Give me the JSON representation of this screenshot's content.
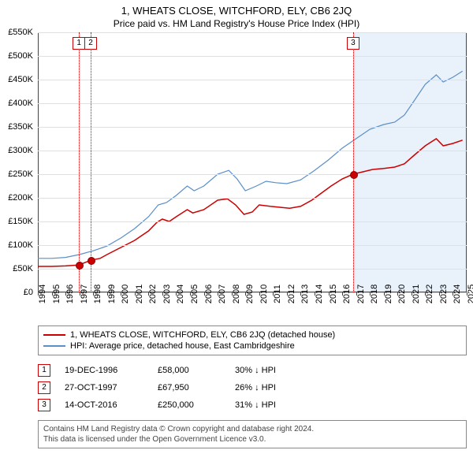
{
  "title": "1, WHEATS CLOSE, WITCHFORD, ELY, CB6 2JQ",
  "subtitle": "Price paid vs. HM Land Registry's House Price Index (HPI)",
  "chart": {
    "type": "line",
    "x_years": [
      1994,
      1995,
      1996,
      1997,
      1998,
      1999,
      2000,
      2001,
      2002,
      2003,
      2004,
      2005,
      2006,
      2007,
      2008,
      2009,
      2010,
      2011,
      2012,
      2013,
      2014,
      2015,
      2016,
      2017,
      2018,
      2019,
      2020,
      2021,
      2022,
      2023,
      2024,
      2025
    ],
    "ylim": [
      0,
      550000
    ],
    "ytick_step": 50000,
    "ytick_labels": [
      "£0",
      "£50K",
      "£100K",
      "£150K",
      "£200K",
      "£250K",
      "£300K",
      "£350K",
      "£400K",
      "£450K",
      "£500K",
      "£550K"
    ],
    "grid_color": "#e0e0e0",
    "background_color": "#ffffff",
    "shade_from_year": 2016.8,
    "shade_color": "#d7e6f5",
    "series": {
      "price_paid": {
        "label": "1, WHEATS CLOSE, WITCHFORD, ELY, CB6 2JQ (detached house)",
        "color": "#cc0000",
        "width": 1.5,
        "points": [
          [
            1994.0,
            55000
          ],
          [
            1995.0,
            55000
          ],
          [
            1996.0,
            56000
          ],
          [
            1996.97,
            58000
          ],
          [
            1997.82,
            67950
          ],
          [
            1998.5,
            72000
          ],
          [
            1999.0,
            80000
          ],
          [
            2000.0,
            95000
          ],
          [
            2001.0,
            110000
          ],
          [
            2002.0,
            130000
          ],
          [
            2002.6,
            148000
          ],
          [
            2003.0,
            155000
          ],
          [
            2003.5,
            150000
          ],
          [
            2004.0,
            160000
          ],
          [
            2004.8,
            175000
          ],
          [
            2005.2,
            168000
          ],
          [
            2006.0,
            175000
          ],
          [
            2007.0,
            195000
          ],
          [
            2007.7,
            198000
          ],
          [
            2008.3,
            185000
          ],
          [
            2008.9,
            165000
          ],
          [
            2009.5,
            170000
          ],
          [
            2010.0,
            185000
          ],
          [
            2010.8,
            182000
          ],
          [
            2011.5,
            180000
          ],
          [
            2012.2,
            178000
          ],
          [
            2013.0,
            182000
          ],
          [
            2013.8,
            195000
          ],
          [
            2014.5,
            210000
          ],
          [
            2015.2,
            225000
          ],
          [
            2016.0,
            240000
          ],
          [
            2016.79,
            250000
          ],
          [
            2017.5,
            255000
          ],
          [
            2018.2,
            260000
          ],
          [
            2019.0,
            262000
          ],
          [
            2019.8,
            265000
          ],
          [
            2020.5,
            272000
          ],
          [
            2021.2,
            290000
          ],
          [
            2022.0,
            310000
          ],
          [
            2022.8,
            325000
          ],
          [
            2023.3,
            310000
          ],
          [
            2024.0,
            315000
          ],
          [
            2024.7,
            322000
          ]
        ]
      },
      "hpi": {
        "label": "HPI: Average price, detached house, East Cambridgeshire",
        "color": "#5b8fc7",
        "width": 1.2,
        "points": [
          [
            1994.0,
            72000
          ],
          [
            1995.0,
            72000
          ],
          [
            1996.0,
            74000
          ],
          [
            1997.0,
            80000
          ],
          [
            1998.0,
            88000
          ],
          [
            1999.0,
            98000
          ],
          [
            2000.0,
            115000
          ],
          [
            2001.0,
            135000
          ],
          [
            2002.0,
            160000
          ],
          [
            2002.7,
            185000
          ],
          [
            2003.3,
            190000
          ],
          [
            2004.0,
            205000
          ],
          [
            2004.8,
            225000
          ],
          [
            2005.3,
            215000
          ],
          [
            2006.0,
            225000
          ],
          [
            2007.0,
            250000
          ],
          [
            2007.8,
            258000
          ],
          [
            2008.4,
            240000
          ],
          [
            2009.0,
            215000
          ],
          [
            2009.8,
            225000
          ],
          [
            2010.5,
            235000
          ],
          [
            2011.2,
            232000
          ],
          [
            2012.0,
            230000
          ],
          [
            2013.0,
            238000
          ],
          [
            2014.0,
            258000
          ],
          [
            2015.0,
            280000
          ],
          [
            2016.0,
            305000
          ],
          [
            2017.0,
            325000
          ],
          [
            2018.0,
            345000
          ],
          [
            2019.0,
            355000
          ],
          [
            2019.8,
            360000
          ],
          [
            2020.5,
            375000
          ],
          [
            2021.2,
            405000
          ],
          [
            2022.0,
            440000
          ],
          [
            2022.8,
            460000
          ],
          [
            2023.3,
            445000
          ],
          [
            2024.0,
            455000
          ],
          [
            2024.7,
            468000
          ]
        ]
      }
    },
    "sale_markers": [
      {
        "n": "1",
        "year": 1996.97,
        "price": 58000
      },
      {
        "n": "2",
        "year": 1997.82,
        "price": 67950
      },
      {
        "n": "3",
        "year": 2016.79,
        "price": 250000
      }
    ],
    "marker_fill": "#cc0000",
    "vline_color": "#cc0000"
  },
  "legend": [
    {
      "color": "#cc0000",
      "label": "1, WHEATS CLOSE, WITCHFORD, ELY, CB6 2JQ (detached house)"
    },
    {
      "color": "#5b8fc7",
      "label": "HPI: Average price, detached house, East Cambridgeshire"
    }
  ],
  "events": [
    {
      "n": "1",
      "date": "19-DEC-1996",
      "price": "£58,000",
      "note": "30% ↓ HPI"
    },
    {
      "n": "2",
      "date": "27-OCT-1997",
      "price": "£67,950",
      "note": "26% ↓ HPI"
    },
    {
      "n": "3",
      "date": "14-OCT-2016",
      "price": "£250,000",
      "note": "31% ↓ HPI"
    }
  ],
  "footer_line1": "Contains HM Land Registry data © Crown copyright and database right 2024.",
  "footer_line2": "This data is licensed under the Open Government Licence v3.0."
}
